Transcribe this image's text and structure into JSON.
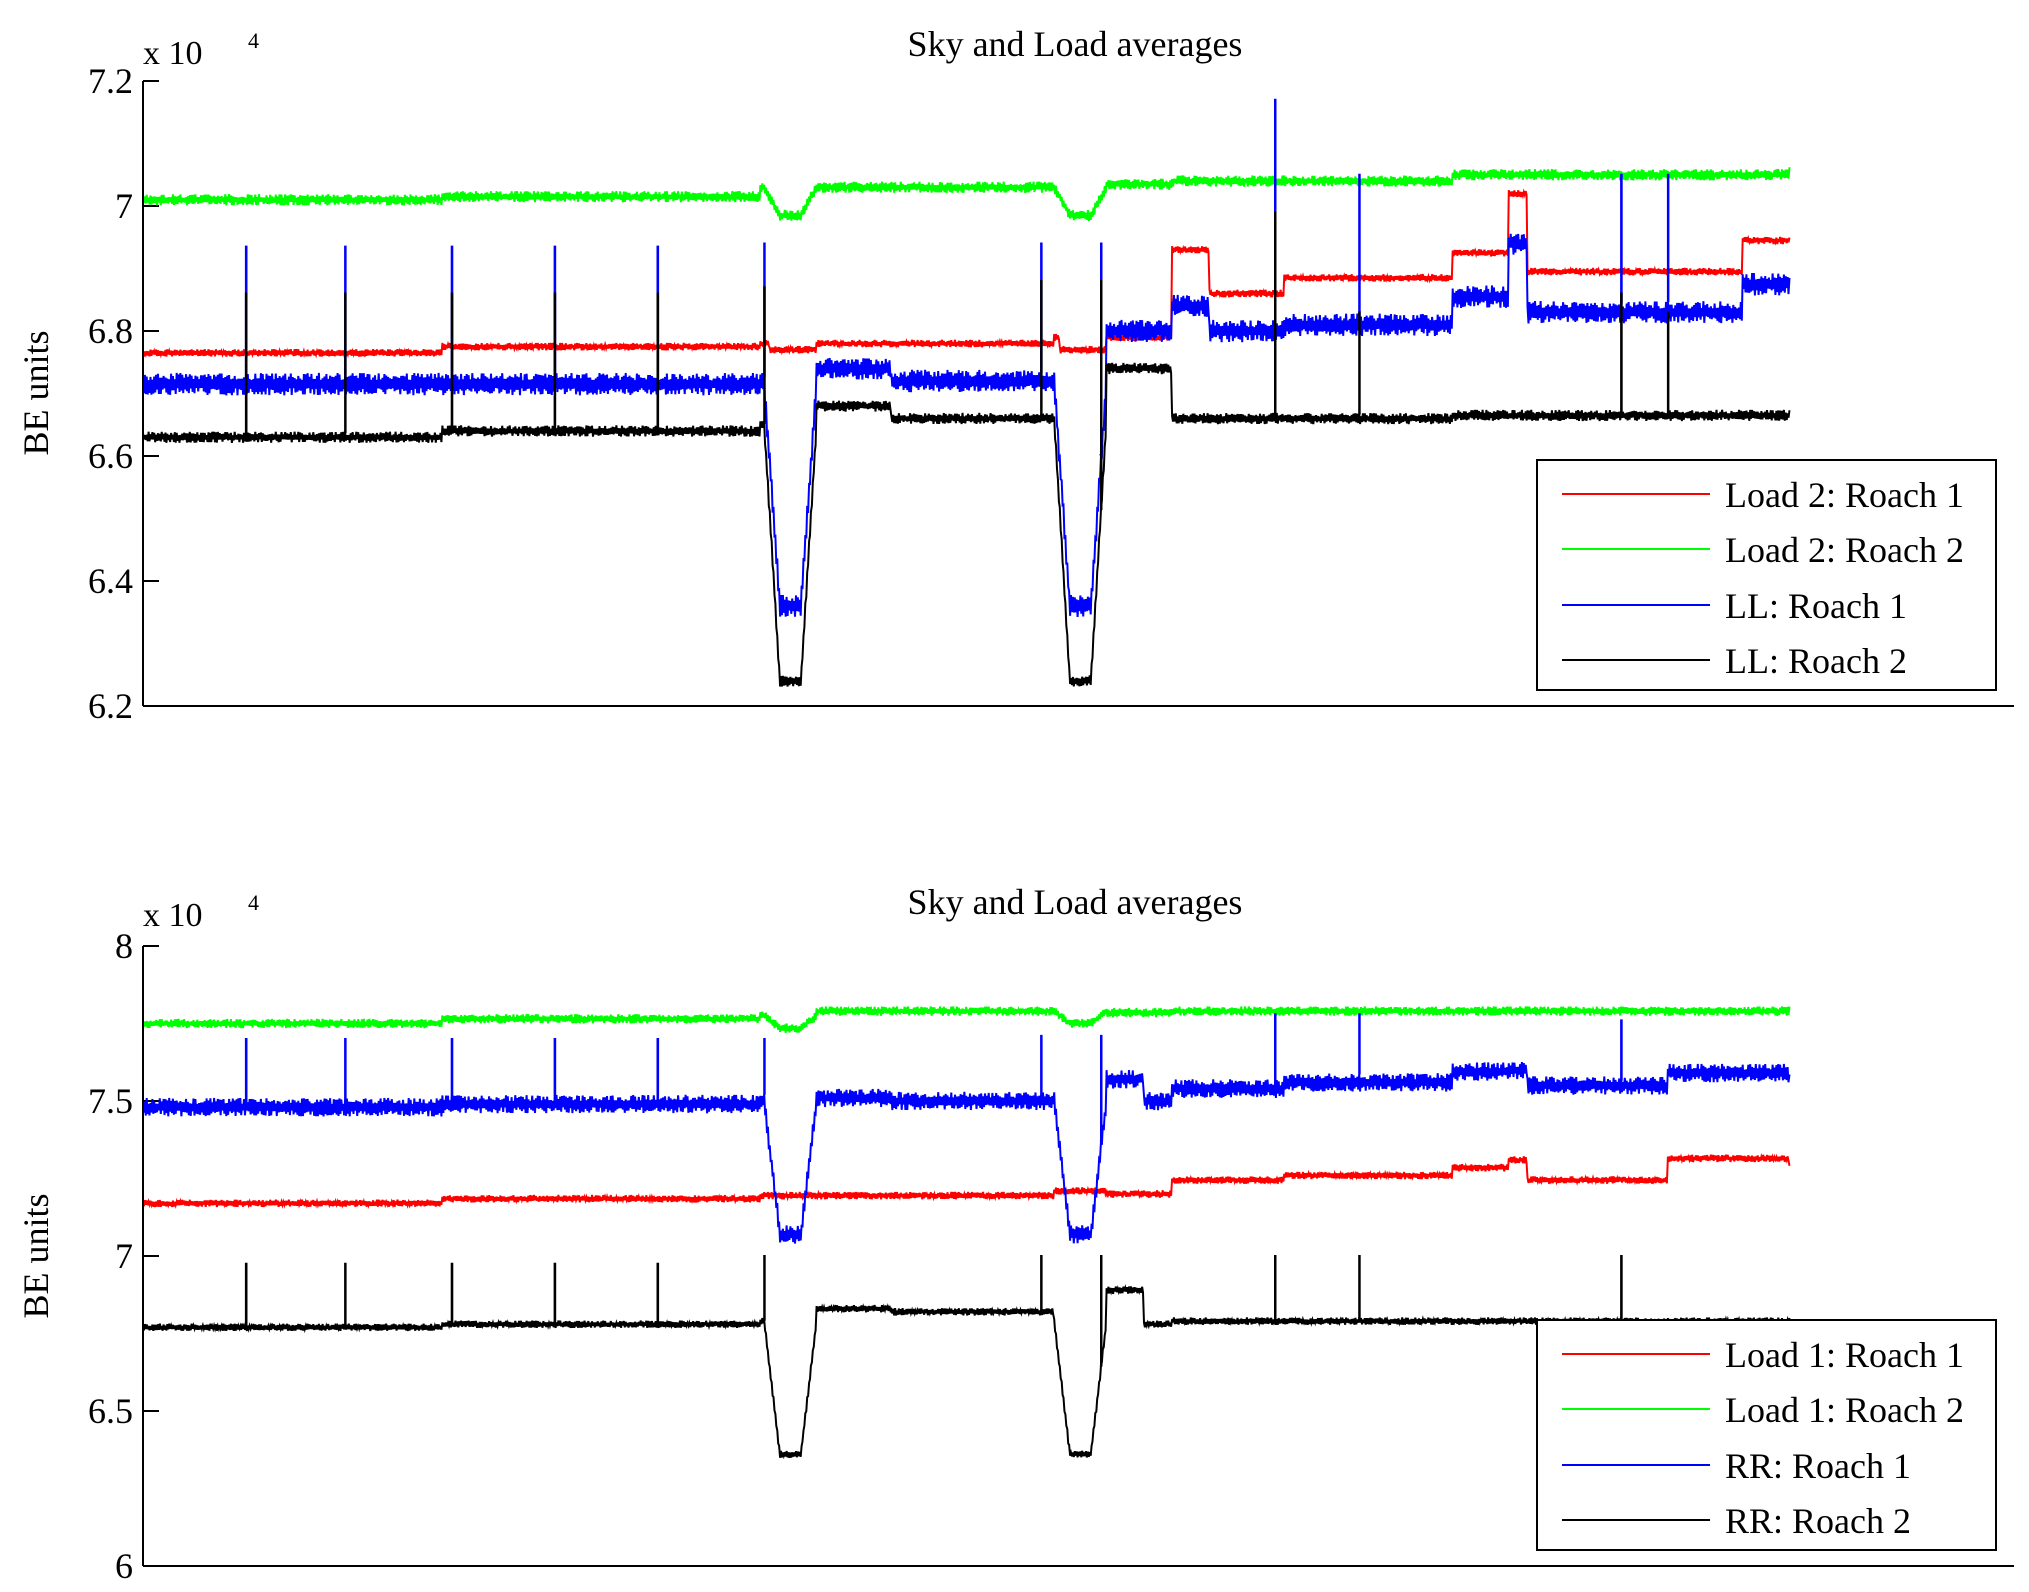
{
  "figure": {
    "background": "#ffffff"
  },
  "chart_data": [
    {
      "type": "line",
      "title": "Sky and Load averages",
      "xlabel": "",
      "ylabel": "BE units",
      "scale_base": "x 10",
      "scale_exponent": "4",
      "ylim": [
        6.2,
        7.2
      ],
      "yticks": [
        6.2,
        6.4,
        6.6,
        6.8,
        7.0,
        7.2
      ],
      "ytick_labels": [
        "6.2",
        "6.4",
        "6.6",
        "6.8",
        "7",
        "7.2"
      ],
      "xlim": [
        0,
        1000
      ],
      "x_data_range": [
        0,
        880
      ],
      "grid": false,
      "legend_position": "bottom-right",
      "dips": [
        [
          332,
          360
        ],
        [
          487,
          515
        ]
      ],
      "series": [
        {
          "name": "Load 2: Roach 1",
          "color": "#ff0000",
          "steps": [
            [
              0,
              6.765
            ],
            [
              160,
              6.775
            ],
            [
              330,
              6.78
            ],
            [
              335,
              6.77
            ],
            [
              360,
              6.78
            ],
            [
              487,
              6.79
            ],
            [
              490,
              6.77
            ],
            [
              515,
              6.79
            ],
            [
              550,
              6.93
            ],
            [
              570,
              6.86
            ],
            [
              610,
              6.885
            ],
            [
              700,
              6.925
            ],
            [
              730,
              7.02
            ],
            [
              740,
              6.895
            ],
            [
              855,
              6.945
            ],
            [
              880,
              6.945
            ]
          ],
          "noise": 0.004,
          "dip_depth": 0.0,
          "spikes": []
        },
        {
          "name": "Load 2: Roach 2",
          "color": "#00ff00",
          "steps": [
            [
              0,
              7.01
            ],
            [
              160,
              7.015
            ],
            [
              330,
              7.03
            ],
            [
              360,
              7.03
            ],
            [
              487,
              7.03
            ],
            [
              515,
              7.035
            ],
            [
              550,
              7.04
            ],
            [
              700,
              7.05
            ],
            [
              880,
              7.055
            ]
          ],
          "noise": 0.006,
          "dip_depth": 0.045,
          "spikes": []
        },
        {
          "name": "LL: Roach 1",
          "color": "#0000ff",
          "steps": [
            [
              0,
              6.715
            ],
            [
              360,
              6.74
            ],
            [
              400,
              6.72
            ],
            [
              487,
              6.72
            ],
            [
              515,
              6.8
            ],
            [
              550,
              6.84
            ],
            [
              570,
              6.8
            ],
            [
              610,
              6.81
            ],
            [
              700,
              6.855
            ],
            [
              730,
              6.94
            ],
            [
              740,
              6.83
            ],
            [
              855,
              6.875
            ],
            [
              880,
              6.87
            ]
          ],
          "noise": 0.012,
          "dip_depth": 0.36,
          "dip_floor": 6.36,
          "spikes": [
            [
              55,
              6.935
            ],
            [
              108,
              6.935
            ],
            [
              165,
              6.935
            ],
            [
              220,
              6.935
            ],
            [
              275,
              6.935
            ],
            [
              332,
              6.94
            ],
            [
              480,
              6.94
            ],
            [
              512,
              6.94
            ],
            [
              605,
              7.17
            ],
            [
              650,
              7.05
            ],
            [
              790,
              7.05
            ],
            [
              815,
              7.05
            ]
          ]
        },
        {
          "name": "LL: Roach 2",
          "color": "#000000",
          "steps": [
            [
              0,
              6.63
            ],
            [
              160,
              6.64
            ],
            [
              330,
              6.65
            ],
            [
              360,
              6.68
            ],
            [
              400,
              6.66
            ],
            [
              487,
              6.66
            ],
            [
              515,
              6.74
            ],
            [
              550,
              6.66
            ],
            [
              700,
              6.665
            ],
            [
              880,
              6.665
            ]
          ],
          "noise": 0.006,
          "dip_depth": 0.42,
          "dip_floor": 6.24,
          "spikes": [
            [
              55,
              6.86
            ],
            [
              108,
              6.86
            ],
            [
              165,
              6.86
            ],
            [
              220,
              6.86
            ],
            [
              275,
              6.86
            ],
            [
              332,
              6.87
            ],
            [
              480,
              6.88
            ],
            [
              512,
              6.88
            ],
            [
              605,
              6.99
            ],
            [
              650,
              6.83
            ],
            [
              790,
              6.86
            ],
            [
              815,
              6.83
            ]
          ]
        }
      ]
    },
    {
      "type": "line",
      "title": "Sky and Load averages",
      "xlabel": "",
      "ylabel": "BE units",
      "scale_base": "x 10",
      "scale_exponent": "4",
      "ylim": [
        6.0,
        8.0
      ],
      "yticks": [
        6.0,
        6.5,
        7.0,
        7.5,
        8.0
      ],
      "ytick_labels": [
        "6",
        "6.5",
        "7",
        "7.5",
        "8"
      ],
      "xlim": [
        0,
        1000
      ],
      "x_data_range": [
        0,
        880
      ],
      "grid": false,
      "legend_position": "bottom-right",
      "dips": [
        [
          332,
          360
        ],
        [
          487,
          515
        ]
      ],
      "series": [
        {
          "name": "Load 1: Roach 1",
          "color": "#ff0000",
          "steps": [
            [
              0,
              7.17
            ],
            [
              160,
              7.185
            ],
            [
              330,
              7.195
            ],
            [
              360,
              7.195
            ],
            [
              487,
              7.21
            ],
            [
              515,
              7.2
            ],
            [
              550,
              7.245
            ],
            [
              610,
              7.26
            ],
            [
              700,
              7.285
            ],
            [
              730,
              7.31
            ],
            [
              740,
              7.245
            ],
            [
              815,
              7.315
            ],
            [
              880,
              7.28
            ]
          ],
          "noise": 0.008,
          "dip_depth": 0.0,
          "spikes": []
        },
        {
          "name": "Load 1: Roach 2",
          "color": "#00ff00",
          "steps": [
            [
              0,
              7.75
            ],
            [
              160,
              7.765
            ],
            [
              330,
              7.775
            ],
            [
              360,
              7.79
            ],
            [
              487,
              7.79
            ],
            [
              515,
              7.785
            ],
            [
              550,
              7.79
            ],
            [
              880,
              7.79
            ]
          ],
          "noise": 0.01,
          "dip_depth": 0.04,
          "spikes": []
        },
        {
          "name": "RR: Roach 1",
          "color": "#0000ff",
          "steps": [
            [
              0,
              7.48
            ],
            [
              160,
              7.49
            ],
            [
              330,
              7.5
            ],
            [
              360,
              7.51
            ],
            [
              400,
              7.5
            ],
            [
              487,
              7.5
            ],
            [
              515,
              7.57
            ],
            [
              535,
              7.5
            ],
            [
              550,
              7.54
            ],
            [
              610,
              7.56
            ],
            [
              700,
              7.595
            ],
            [
              730,
              7.6
            ],
            [
              740,
              7.55
            ],
            [
              815,
              7.59
            ],
            [
              880,
              7.575
            ]
          ],
          "noise": 0.02,
          "dip_depth": 0.43,
          "dip_floor": 7.07,
          "spikes": [
            [
              55,
              7.7
            ],
            [
              108,
              7.7
            ],
            [
              165,
              7.7
            ],
            [
              220,
              7.7
            ],
            [
              275,
              7.7
            ],
            [
              332,
              7.7
            ],
            [
              480,
              7.71
            ],
            [
              512,
              7.71
            ],
            [
              605,
              7.78
            ],
            [
              650,
              7.78
            ],
            [
              790,
              7.76
            ]
          ]
        },
        {
          "name": "RR: Roach 2",
          "color": "#000000",
          "steps": [
            [
              0,
              6.77
            ],
            [
              160,
              6.78
            ],
            [
              330,
              6.79
            ],
            [
              360,
              6.83
            ],
            [
              400,
              6.82
            ],
            [
              487,
              6.79
            ],
            [
              515,
              6.89
            ],
            [
              535,
              6.78
            ],
            [
              550,
              6.79
            ],
            [
              880,
              6.795
            ]
          ],
          "noise": 0.008,
          "dip_depth": 0.43,
          "dip_floor": 6.36,
          "spikes": [
            [
              55,
              6.975
            ],
            [
              108,
              6.975
            ],
            [
              165,
              6.975
            ],
            [
              220,
              6.975
            ],
            [
              275,
              6.975
            ],
            [
              332,
              7.0
            ],
            [
              480,
              7.0
            ],
            [
              512,
              7.0
            ],
            [
              605,
              7.0
            ],
            [
              650,
              7.0
            ],
            [
              790,
              7.0
            ]
          ]
        }
      ]
    }
  ]
}
